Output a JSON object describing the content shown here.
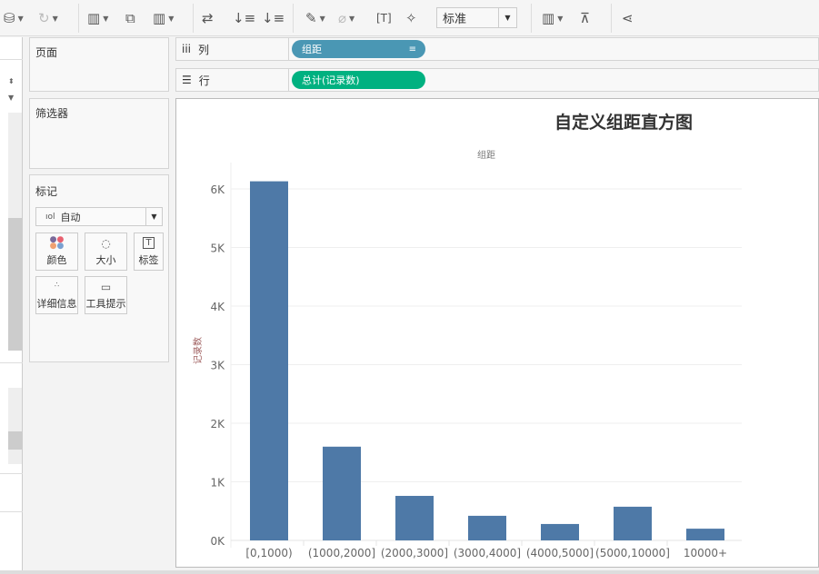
{
  "toolbar": {
    "fit_select": "标准",
    "icons": [
      "datasource-pause-icon",
      "refresh-icon",
      "new-worksheet-icon",
      "duplicate-sheet-icon",
      "clear-sheet-icon",
      "swap-axes-icon",
      "sort-ascending-icon",
      "sort-descending-icon",
      "highlight-icon",
      "group-icon",
      "show-labels-icon",
      "pin-icon",
      "show-me-icon",
      "presentation-icon",
      "share-icon"
    ]
  },
  "cards": {
    "pages": "页面",
    "filters": "筛选器",
    "marks": "标记",
    "mark_type": "自动",
    "mark_buttons": [
      "颜色",
      "大小",
      "标签",
      "详细信息",
      "工具提示"
    ]
  },
  "shelves": {
    "columns_label": "列",
    "columns_pill": "组距",
    "rows_label": "行",
    "rows_pill": "总计(记录数)"
  },
  "colors": {
    "bar": "#4e79a7",
    "columns_pill": "#4a97b4",
    "rows_pill": "#00b180"
  },
  "chart_data": {
    "type": "bar",
    "title": "自定义组距直方图",
    "xlabel": "组距",
    "ylabel": "记录数",
    "categories": [
      "[0,1000)",
      "(1000,2000]",
      "(2000,3000]",
      "(3000,4000]",
      "(4000,5000]",
      "(5000,10000]",
      "10000+"
    ],
    "values": [
      6130,
      1600,
      760,
      420,
      280,
      575,
      200
    ],
    "yticks": [
      "0K",
      "1K",
      "2K",
      "3K",
      "4K",
      "5K",
      "6K"
    ],
    "ylim": [
      0,
      6000
    ],
    "grid": true
  }
}
